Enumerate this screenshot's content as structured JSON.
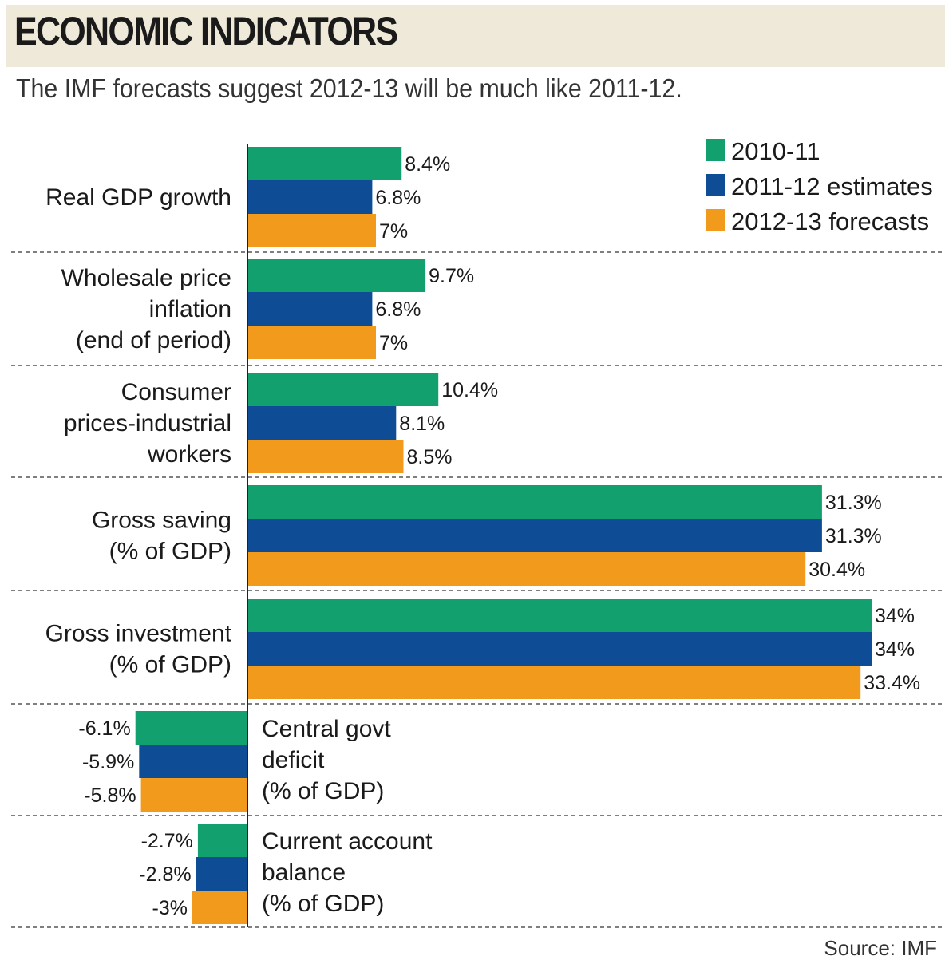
{
  "header": {
    "title": "ECONOMIC INDICATORS",
    "subtitle": "The IMF forecasts suggest 2012-13 will be much like 2011-12."
  },
  "source": "Source: IMF",
  "colors": {
    "2010-11": "#12a06e",
    "2011-12 estimates": "#0f4c96",
    "2012-13 forecasts": "#f19a1c",
    "header_band": "#efe9d9"
  },
  "chart_data": {
    "type": "bar",
    "orientation": "horizontal",
    "series": [
      {
        "name": "2010-11",
        "color": "#12a06e",
        "values": [
          8.4,
          9.7,
          10.4,
          31.3,
          34,
          -6.1,
          -2.7
        ]
      },
      {
        "name": "2011-12 estimates",
        "color": "#0f4c96",
        "values": [
          6.8,
          6.8,
          8.1,
          31.3,
          34,
          -5.9,
          -2.8
        ]
      },
      {
        "name": "2012-13 forecasts",
        "color": "#f19a1c",
        "values": [
          7,
          7,
          8.5,
          30.4,
          33.4,
          -5.8,
          -3
        ]
      }
    ],
    "categories": [
      {
        "lines": [
          "Real GDP growth"
        ]
      },
      {
        "lines": [
          "Wholesale price",
          "inflation",
          "(end of period)"
        ]
      },
      {
        "lines": [
          "Consumer",
          "prices-industrial",
          "workers"
        ]
      },
      {
        "lines": [
          "Gross saving",
          "(% of GDP)"
        ]
      },
      {
        "lines": [
          "Gross investment",
          "(% of GDP)"
        ]
      },
      {
        "lines": [
          "Central govt",
          "deficit",
          "(% of GDP)"
        ]
      },
      {
        "lines": [
          "Current account",
          "balance",
          "(% of GDP)"
        ]
      }
    ],
    "value_labels": [
      [
        "8.4%",
        "6.8%",
        "7%"
      ],
      [
        "9.7%",
        "6.8%",
        "7%"
      ],
      [
        "10.4%",
        "8.1%",
        "8.5%"
      ],
      [
        "31.3%",
        "31.3%",
        "30.4%"
      ],
      [
        "34%",
        "34%",
        "33.4%"
      ],
      [
        "-6.1%",
        "-5.9%",
        "-5.8%"
      ],
      [
        "-2.7%",
        "-2.8%",
        "-3%"
      ]
    ],
    "legend": {
      "position": "top-right",
      "entries": [
        "2010-11",
        "2011-12 estimates",
        "2012-13 forecasts"
      ]
    },
    "xlim": [
      -6.5,
      34.5
    ],
    "grid": false
  }
}
